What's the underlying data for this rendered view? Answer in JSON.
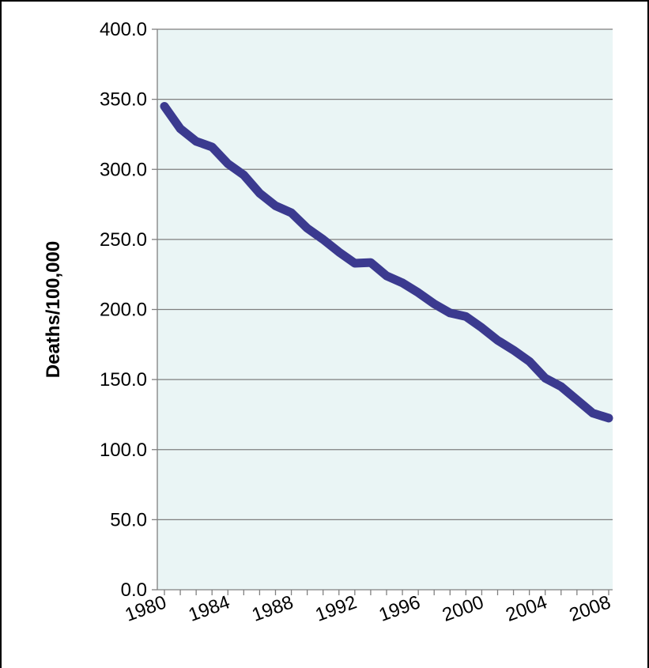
{
  "chart_data": {
    "type": "line",
    "ylabel": "Deaths/100,000",
    "xlabel": "",
    "title": "",
    "ylim": [
      0,
      400
    ],
    "xlim": [
      1980,
      2008
    ],
    "y_ticks": [
      0,
      50,
      100,
      150,
      200,
      250,
      300,
      350,
      400
    ],
    "y_tick_labels": [
      "0.0",
      "50.0",
      "100.0",
      "150.0",
      "200.0",
      "250.0",
      "300.0",
      "350.0",
      "400.0"
    ],
    "x_tick_labels": [
      "1980",
      "1984",
      "1988",
      "1992",
      "1996",
      "2000",
      "2004",
      "2008"
    ],
    "x_ticks": [
      1980,
      1984,
      1988,
      1992,
      1996,
      2000,
      2004,
      2008
    ],
    "grid": "horizontal",
    "legend": "none",
    "colors": {
      "line": "#3b3a8f",
      "plot_bg": "#eaf5f5",
      "grid": "#7f7f7f"
    },
    "series": [
      {
        "x": [
          1980,
          1981,
          1982,
          1983,
          1984,
          1985,
          1986,
          1987,
          1988,
          1989,
          1990,
          1991,
          1992,
          1993,
          1994,
          1995,
          1996,
          1997,
          1998,
          1999,
          2000,
          2001,
          2002,
          2003,
          2004,
          2005,
          2006,
          2007,
          2008
        ],
        "values": [
          345.0,
          329.0,
          320.0,
          316.0,
          304.0,
          296.0,
          283.0,
          274.0,
          269.0,
          258.0,
          250.0,
          241.0,
          233.0,
          233.5,
          224.0,
          219.0,
          212.0,
          204.0,
          197.5,
          195.0,
          187.0,
          178.0,
          171.0,
          163.0,
          151.0,
          145.0,
          135.5,
          126.0,
          122.5
        ]
      }
    ]
  }
}
